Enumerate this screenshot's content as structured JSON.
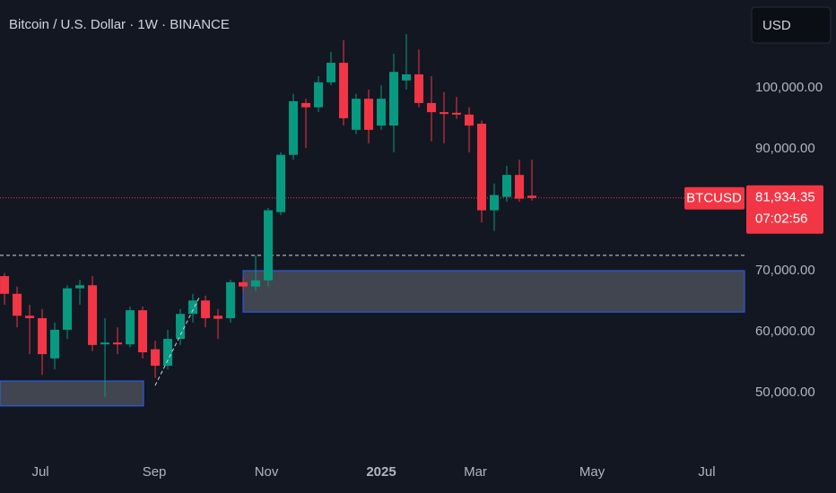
{
  "chart_data": {
    "type": "candlestick",
    "title": "Bitcoin / U.S. Dollar · 1W · BINANCE",
    "currency": "USD",
    "up_color": "#089981",
    "down_color": "#f23645",
    "categories": [
      null,
      null,
      null,
      null,
      null,
      null,
      null,
      null,
      null,
      null,
      null,
      null,
      null,
      null,
      null,
      null,
      null,
      null,
      null,
      null,
      null,
      null,
      null,
      null,
      null,
      null,
      null,
      null,
      null,
      null,
      null,
      null,
      null,
      null,
      null,
      null,
      null,
      null,
      null,
      null,
      null,
      null,
      null
    ],
    "open": [
      69100,
      66200,
      62600,
      62200,
      55600,
      60300,
      67100,
      67600,
      57900,
      58200,
      57900,
      63500,
      57100,
      54400,
      58800,
      62900,
      65100,
      62600,
      62200,
      68100,
      67400,
      68400,
      79600,
      89000,
      97500,
      96800,
      100900,
      104100,
      93100,
      98200,
      93800,
      93800,
      101200,
      102200,
      97500,
      96000,
      95900,
      95600,
      94100,
      79900,
      82100,
      85700,
      82300
    ],
    "high": [
      69600,
      67400,
      64400,
      63700,
      61500,
      67600,
      68500,
      69100,
      62200,
      60700,
      64100,
      64100,
      58500,
      60300,
      63700,
      66200,
      65900,
      63700,
      68500,
      68800,
      72500,
      80300,
      89400,
      99000,
      98200,
      101900,
      105900,
      107800,
      99000,
      99700,
      100400,
      105600,
      108800,
      106300,
      101900,
      99300,
      98500,
      96800,
      94600,
      84300,
      87200,
      88200,
      88200
    ],
    "low": [
      64400,
      60700,
      56300,
      52900,
      53800,
      58800,
      64400,
      56800,
      49300,
      56300,
      57400,
      55600,
      52400,
      53800,
      57800,
      61500,
      60700,
      58800,
      61500,
      66600,
      66600,
      67400,
      79100,
      88200,
      90100,
      96000,
      100400,
      93800,
      92400,
      90900,
      93100,
      89400,
      99700,
      96800,
      91200,
      90900,
      94900,
      89400,
      77900,
      76500,
      81300,
      81300,
      81500
    ],
    "close": [
      66200,
      62600,
      62200,
      56300,
      60300,
      67100,
      67600,
      57800,
      58200,
      57900,
      63500,
      56600,
      54400,
      58800,
      62900,
      65100,
      62200,
      62100,
      68100,
      67400,
      68400,
      79900,
      89000,
      97800,
      96800,
      100900,
      104100,
      95000,
      98200,
      93100,
      98200,
      102600,
      102200,
      97500,
      96000,
      95700,
      95600,
      93800,
      79900,
      82400,
      85700,
      81800,
      81934.35
    ],
    "xlim": [
      -0.36,
      58.93
    ],
    "xticks": [
      {
        "value": 2.86,
        "label": "Jul"
      },
      {
        "value": 11.93,
        "label": "Sep"
      },
      {
        "value": 20.86,
        "label": "Nov"
      },
      {
        "value": 30,
        "label": "2025"
      },
      {
        "value": 37.5,
        "label": "Mar"
      },
      {
        "value": 46.79,
        "label": "May"
      },
      {
        "value": 55.93,
        "label": "Jul"
      }
    ],
    "ylim": [
      39400,
      114400
    ],
    "yticks": [
      {
        "value": 50000,
        "label": "50,000.00"
      },
      {
        "value": 60000,
        "label": "60,000.00"
      },
      {
        "value": 70000,
        "label": "70,000.00"
      },
      {
        "value": 90000,
        "label": "90,000.00"
      },
      {
        "value": 100000,
        "label": "100,000.00"
      }
    ],
    "zones": [
      {
        "x": [
          -0.36,
          11.07
        ],
        "top": 51900,
        "bottom": 47800
      },
      {
        "x": [
          19,
          58.93
        ],
        "top": 70000,
        "bottom": 63200
      }
    ],
    "hline": 72500,
    "last_price": {
      "symbol": "BTCUSD",
      "value": 81934.35,
      "label": "81,934.35",
      "countdown": "07:02:56"
    }
  }
}
